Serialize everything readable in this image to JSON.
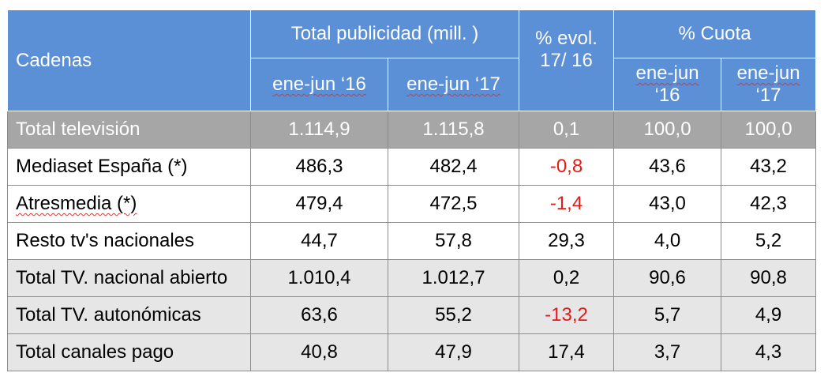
{
  "header": {
    "cadenas": "Cadenas",
    "total_publicidad": "Total publicidad (mill. )",
    "evol_line1": "% evol.",
    "evol_line2": "17/ 16",
    "cuota": "% Cuota",
    "pub_16": "ene-jun ‘16",
    "pub_17": "ene-jun ‘17",
    "cuota_16_line1": "ene-jun",
    "cuota_16_line2": "‘16",
    "cuota_17_line1": "ene-jun",
    "cuota_17_line2": "‘17"
  },
  "rows": [
    {
      "name": "Total televisión",
      "pub16": "1.114,9",
      "pub17": "1.115,8",
      "evol": "0,1",
      "cuota16": "100,0",
      "cuota17": "100,0"
    },
    {
      "name": "Mediaset España (*)",
      "pub16": "486,3",
      "pub17": "482,4",
      "evol": "-0,8",
      "cuota16": "43,6",
      "cuota17": "43,2"
    },
    {
      "name": "Atresmedia (*)",
      "pub16": "479,4",
      "pub17": "472,5",
      "evol": "-1,4",
      "cuota16": "43,0",
      "cuota17": "42,3"
    },
    {
      "name": "Resto tv's nacionales",
      "pub16": "44,7",
      "pub17": "57,8",
      "evol": "29,3",
      "cuota16": "4,0",
      "cuota17": "5,2"
    },
    {
      "name": "Total TV. nacional abierto",
      "pub16": "1.010,4",
      "pub17": "1.012,7",
      "evol": "0,2",
      "cuota16": "90,6",
      "cuota17": "90,8"
    },
    {
      "name": "Total TV. autonómicas",
      "pub16": "63,6",
      "pub17": "55,2",
      "evol": "-13,2",
      "cuota16": "5,7",
      "cuota17": "4,9"
    },
    {
      "name": "Total canales pago",
      "pub16": "40,8",
      "pub17": "47,9",
      "evol": "17,4",
      "cuota16": "3,7",
      "cuota17": "4,3"
    }
  ],
  "colors": {
    "header_bg": "#5b8fd6",
    "total_row_bg": "#a6a6a6",
    "alt_row_bg": "#e6e6e6",
    "negative_text": "#e31b1b"
  }
}
